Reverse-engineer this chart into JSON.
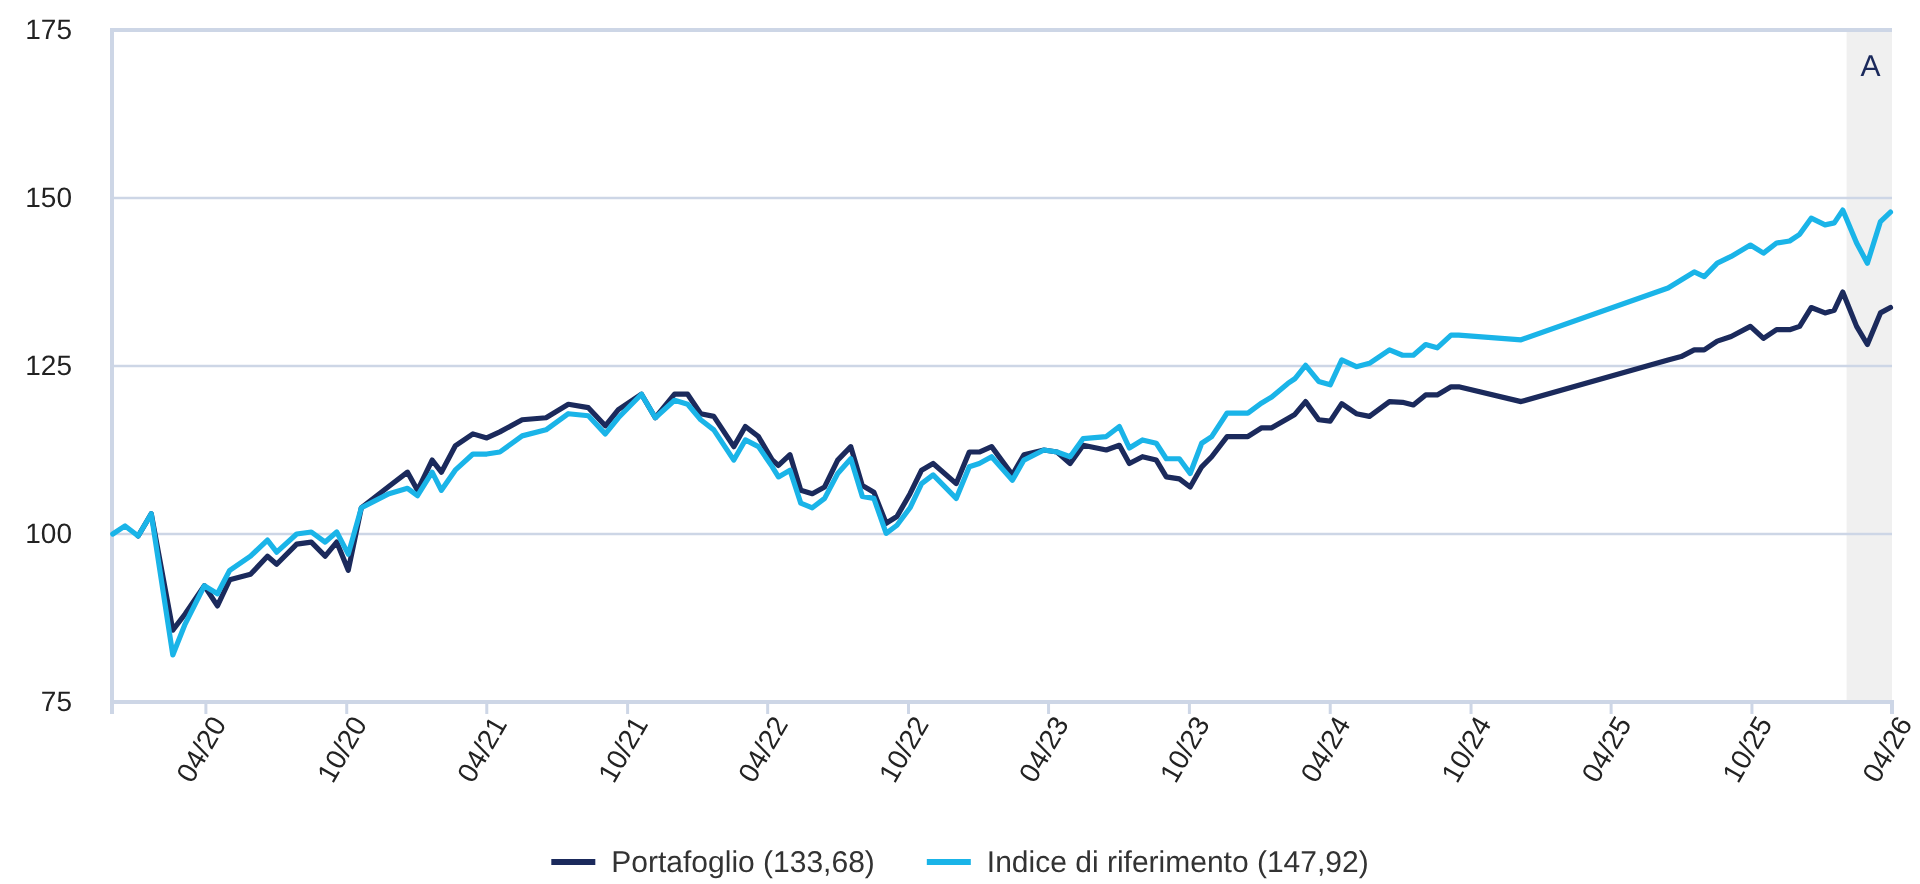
{
  "chart_data": {
    "type": "line",
    "x": [
      "2019-12-02",
      "2019-12-18",
      "2020-01-04",
      "2020-01-21",
      "2020-02-18",
      "2020-03-05",
      "2020-03-30",
      "2020-04-16",
      "2020-05-02",
      "2020-05-29",
      "2020-06-20",
      "2020-07-02",
      "2020-07-28",
      "2020-08-16",
      "2020-09-03",
      "2020-09-18",
      "2020-10-03",
      "2020-10-20",
      "2020-11-25",
      "2020-12-19",
      "2021-01-01",
      "2021-01-20",
      "2021-02-01",
      "2021-02-19",
      "2021-03-14",
      "2021-04-01",
      "2021-04-18",
      "2021-05-17",
      "2021-06-17",
      "2021-07-16",
      "2021-08-11",
      "2021-09-02",
      "2021-09-19",
      "2021-10-19",
      "2021-11-06",
      "2021-12-01",
      "2021-12-18",
      "2022-01-04",
      "2022-01-21",
      "2022-02-16",
      "2022-03-03",
      "2022-03-20",
      "2022-04-07",
      "2022-04-15",
      "2022-04-30",
      "2022-05-14",
      "2022-05-29",
      "2022-06-14",
      "2022-07-01",
      "2022-07-18",
      "2022-08-02",
      "2022-08-17",
      "2022-09-02",
      "2022-09-16",
      "2022-10-03",
      "2022-10-18",
      "2022-11-02",
      "2022-12-02",
      "2022-12-19",
      "2023-01-01",
      "2023-01-17",
      "2023-02-13",
      "2023-02-28",
      "2023-03-26",
      "2023-04-12",
      "2023-04-29",
      "2023-05-16",
      "2023-06-15",
      "2023-07-02",
      "2023-07-15",
      "2023-08-01",
      "2023-08-19",
      "2023-09-01",
      "2023-09-18",
      "2023-10-02",
      "2023-10-17",
      "2023-10-30",
      "2023-11-19",
      "2023-12-16",
      "2024-01-03",
      "2024-01-16",
      "2024-02-06",
      "2024-02-15",
      "2024-02-29",
      "2024-03-17",
      "2024-04-01",
      "2024-04-16",
      "2024-05-05",
      "2024-05-22",
      "2024-06-17",
      "2024-07-04",
      "2024-07-18",
      "2024-08-03",
      "2024-08-18",
      "2024-09-05",
      "2024-09-15",
      "2024-12-05",
      "2025-06-14",
      "2025-07-01",
      "2025-07-18",
      "2025-07-31",
      "2025-08-17",
      "2025-09-04",
      "2025-09-29",
      "2025-10-16",
      "2025-11-02",
      "2025-11-19",
      "2025-12-02",
      "2025-12-17",
      "2026-01-04",
      "2026-01-16",
      "2026-01-27",
      "2026-02-14",
      "2026-02-28",
      "2026-03-17",
      "2026-03-30"
    ],
    "series": [
      {
        "name": "Portafoglio (133,68)",
        "color": "#1b2a5c",
        "values": [
          null,
          null,
          99.7,
          103,
          85.7,
          88.1,
          92.3,
          89.3,
          93.2,
          94,
          96.7,
          95.5,
          98.5,
          98.8,
          96.7,
          98.8,
          94.6,
          103.9,
          107.1,
          109.2,
          106.5,
          111,
          109.2,
          113.1,
          114.9,
          114.3,
          115.2,
          117,
          117.3,
          119.3,
          118.8,
          116.1,
          118.5,
          120.8,
          117.3,
          120.8,
          120.8,
          117.9,
          117.5,
          113,
          116,
          114.5,
          111,
          110.2,
          111.8,
          106.5,
          106,
          107,
          111,
          113,
          107.2,
          106.2,
          101.6,
          102.6,
          106,
          109.5,
          110.5,
          107.5,
          112.2,
          112.2,
          113,
          108.8,
          111.8,
          112.5,
          112.2,
          110.5,
          113.2,
          112.5,
          113.2,
          110.5,
          111.5,
          111,
          108.5,
          108.2,
          107,
          110,
          111.5,
          114.5,
          114.5,
          115.8,
          115.8,
          117.2,
          117.8,
          119.7,
          117,
          116.8,
          119.4,
          117.9,
          117.5,
          119.7,
          119.6,
          119.2,
          120.7,
          120.7,
          121.9,
          121.9,
          119.7,
          125.9,
          126.4,
          127.4,
          127.4,
          128.7,
          129.4,
          130.9,
          129.1,
          130.4,
          130.4,
          130.9,
          133.7,
          132.9,
          133.3,
          136,
          130.9,
          128.2,
          132.9,
          133.7
        ]
      },
      {
        "name": "Indice di riferimento (147,92)",
        "color": "#1ab4e8",
        "values": [
          100,
          101.2,
          99.7,
          103,
          82,
          86.6,
          92.3,
          91.1,
          94.6,
          96.7,
          99.1,
          97.3,
          100,
          100.3,
          98.8,
          100.3,
          97,
          103.9,
          106,
          106.8,
          105.7,
          109.2,
          106.5,
          109.5,
          111.9,
          111.9,
          112.2,
          114.6,
          115.5,
          117.9,
          117.6,
          114.9,
          117.3,
          120.8,
          117.3,
          119.9,
          119.3,
          117,
          115.5,
          111,
          114,
          113,
          110,
          108.5,
          109.5,
          104.6,
          103.9,
          105.3,
          109,
          111.2,
          105.6,
          105.3,
          100.1,
          101.3,
          103.9,
          107.5,
          108.8,
          105.3,
          110,
          110.5,
          111.5,
          108,
          111,
          112.5,
          112.2,
          111.5,
          114.2,
          114.5,
          116,
          112.8,
          114,
          113.5,
          111.2,
          111.2,
          109,
          113.5,
          114.5,
          118,
          118,
          119.5,
          120.4,
          122.4,
          123.1,
          125.1,
          122.7,
          122.2,
          125.9,
          124.9,
          125.4,
          127.4,
          126.6,
          126.6,
          128.2,
          127.7,
          129.6,
          129.6,
          128.9,
          136.6,
          137.8,
          139,
          138.3,
          140.3,
          141.3,
          143,
          141.8,
          143.3,
          143.6,
          144.6,
          147,
          146,
          146.3,
          148.2,
          143.3,
          140.3,
          146.5,
          147.9
        ]
      }
    ],
    "xlim": [
      "2019-12-01",
      "2026-04-01"
    ],
    "xticks": [
      {
        "value": "2020-04-01",
        "label": "04/20"
      },
      {
        "value": "2020-10-01",
        "label": "10/20"
      },
      {
        "value": "2021-04-01",
        "label": "04/21"
      },
      {
        "value": "2021-10-01",
        "label": "10/21"
      },
      {
        "value": "2022-04-01",
        "label": "04/22"
      },
      {
        "value": "2022-10-01",
        "label": "10/22"
      },
      {
        "value": "2023-04-01",
        "label": "04/23"
      },
      {
        "value": "2023-10-01",
        "label": "10/23"
      },
      {
        "value": "2024-04-01",
        "label": "04/24"
      },
      {
        "value": "2024-10-01",
        "label": "10/24"
      },
      {
        "value": "2025-04-01",
        "label": "04/25"
      },
      {
        "value": "2025-10-01",
        "label": "10/25"
      },
      {
        "value": "2026-04-01",
        "label": "04/26"
      }
    ],
    "ylim": [
      75,
      175
    ],
    "yticks": [
      75,
      100,
      125,
      150,
      175
    ],
    "grid": "y",
    "legend": "bottom",
    "marker": "none",
    "line_style": "solid",
    "bands": [
      {
        "axis": "x",
        "from": "2026-02-01",
        "to": "2026-04-01",
        "label": "A",
        "color": "#f0f0f0"
      }
    ]
  }
}
